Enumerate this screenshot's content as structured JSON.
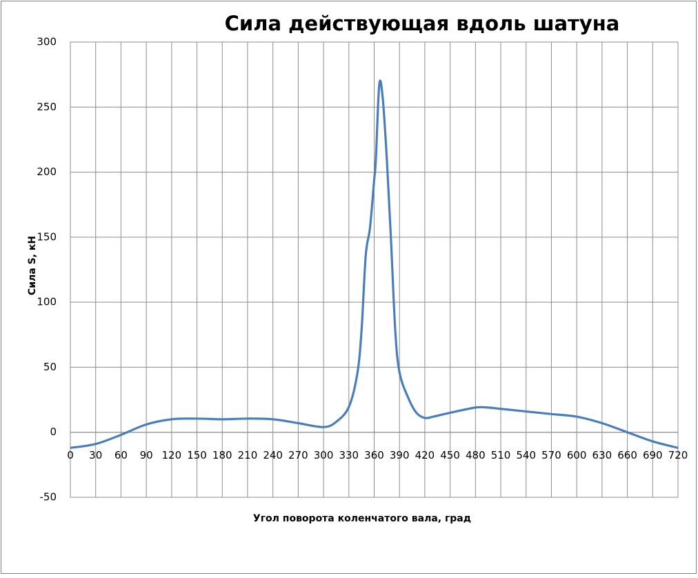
{
  "chart_data": {
    "type": "line",
    "title": "Сила действующая вдоль шатуна",
    "x_label": "Угол поворота коленчатого вала, град",
    "y_label": "Сила S, кН",
    "x": [
      0,
      30,
      60,
      90,
      120,
      150,
      180,
      210,
      240,
      270,
      300,
      315,
      330,
      340,
      345,
      350,
      355,
      360,
      362,
      366,
      370,
      375,
      380,
      385,
      390,
      400,
      410,
      420,
      430,
      450,
      480,
      495,
      510,
      540,
      570,
      600,
      630,
      660,
      690,
      720
    ],
    "series": [
      {
        "name": "Сила S",
        "color": "#4a7ebb",
        "values": [
          -12,
          -9,
          -2,
          6,
          10,
          10.5,
          10,
          10.5,
          10,
          7,
          4,
          8,
          19.5,
          45,
          78,
          136,
          157,
          194,
          210,
          267,
          258,
          210,
          147,
          78,
          46,
          27,
          15,
          11,
          12,
          15,
          19,
          19,
          18,
          16,
          14,
          12,
          7,
          0,
          -7,
          -12
        ]
      }
    ],
    "xlim": [
      0,
      720
    ],
    "xticks": [
      0,
      30,
      60,
      90,
      120,
      150,
      180,
      210,
      240,
      270,
      300,
      330,
      360,
      390,
      420,
      450,
      480,
      510,
      540,
      570,
      600,
      630,
      660,
      690,
      720
    ],
    "ylim": [
      -50,
      300
    ],
    "yticks": [
      -50,
      0,
      50,
      100,
      150,
      200,
      250,
      300
    ],
    "grid": true
  }
}
